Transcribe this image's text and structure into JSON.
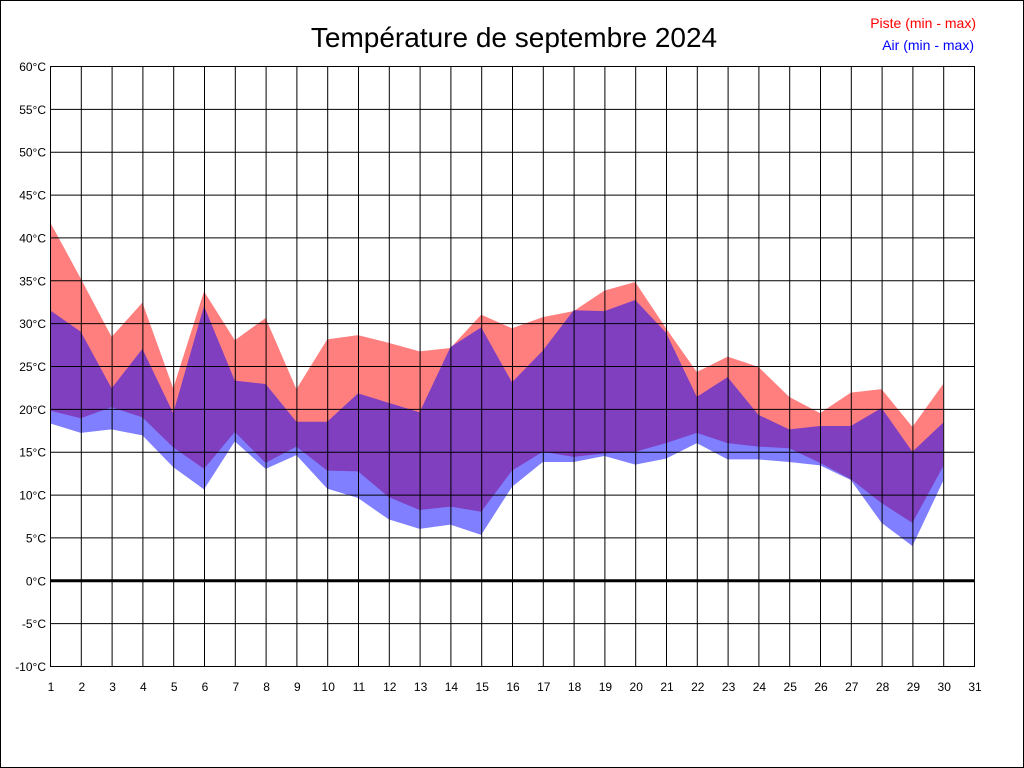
{
  "chart_data": {
    "type": "area",
    "title": "Température de septembre 2024",
    "xlabel": "",
    "ylabel": "",
    "xlim": [
      1,
      31
    ],
    "ylim": [
      -10,
      60
    ],
    "y_unit": "°C",
    "y_ticks": [
      -10,
      -5,
      0,
      5,
      10,
      15,
      20,
      25,
      30,
      35,
      40,
      45,
      50,
      55,
      60
    ],
    "x_ticks": [
      1,
      2,
      3,
      4,
      5,
      6,
      7,
      8,
      9,
      10,
      11,
      12,
      13,
      14,
      15,
      16,
      17,
      18,
      19,
      20,
      21,
      22,
      23,
      24,
      25,
      26,
      27,
      28,
      29,
      30,
      31
    ],
    "grid": true,
    "legend_placement": "top-right",
    "x": [
      1,
      2,
      3,
      4,
      5,
      6,
      7,
      8,
      9,
      10,
      11,
      12,
      13,
      14,
      15,
      16,
      17,
      18,
      19,
      20,
      21,
      22,
      23,
      24,
      25,
      26,
      27,
      28,
      29,
      30
    ],
    "series": [
      {
        "name": "Piste (min - max)",
        "color": "#ff0000",
        "min": [
          19.8,
          18.9,
          20.2,
          19.0,
          15.5,
          13.0,
          17.3,
          13.7,
          15.6,
          12.8,
          12.7,
          9.7,
          8.2,
          8.6,
          8.0,
          12.8,
          15.0,
          14.4,
          14.8,
          15.0,
          16.0,
          17.2,
          16.0,
          15.6,
          15.4,
          13.7,
          11.8,
          9.0,
          6.7,
          13.3
        ],
        "max": [
          41.8,
          35.2,
          28.4,
          32.4,
          22.4,
          33.7,
          28.0,
          30.6,
          22.3,
          28.1,
          28.6,
          27.7,
          26.7,
          27.1,
          31.0,
          29.4,
          30.7,
          31.4,
          33.8,
          34.8,
          29.4,
          24.3,
          26.1,
          24.9,
          21.4,
          19.5,
          21.9,
          22.3,
          17.9,
          22.9
        ]
      },
      {
        "name": "Air (min - max)",
        "color": "#0000ff",
        "min": [
          18.3,
          17.2,
          17.6,
          16.9,
          13.2,
          10.6,
          16.2,
          13.0,
          14.6,
          10.7,
          9.6,
          7.1,
          6.0,
          6.5,
          5.3,
          10.9,
          13.8,
          13.8,
          14.5,
          13.5,
          14.2,
          16.0,
          14.1,
          14.1,
          13.8,
          13.4,
          11.7,
          6.7,
          4.0,
          11.6
        ],
        "max": [
          31.5,
          29.0,
          22.4,
          27.0,
          19.5,
          32.0,
          23.3,
          22.9,
          18.5,
          18.5,
          21.8,
          20.7,
          19.6,
          27.2,
          29.5,
          23.1,
          26.8,
          31.5,
          31.4,
          32.7,
          28.9,
          21.4,
          23.7,
          19.3,
          17.6,
          18.0,
          18.0,
          20.1,
          15.0,
          18.4
        ]
      }
    ]
  }
}
